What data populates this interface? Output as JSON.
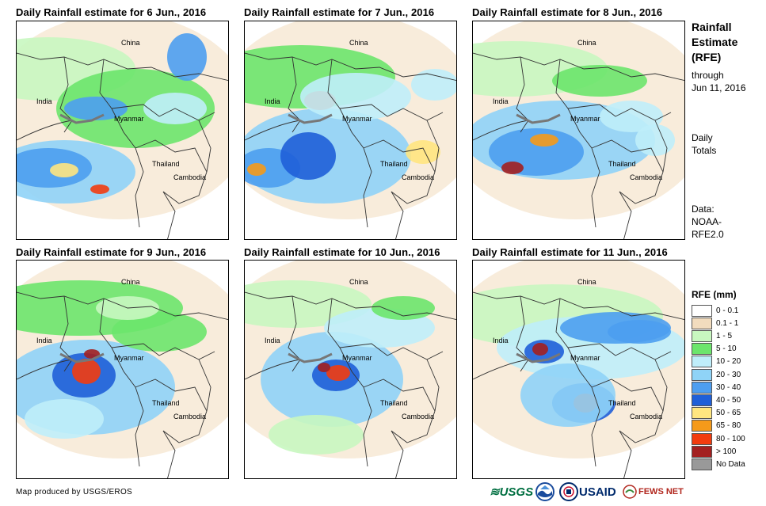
{
  "panels": [
    {
      "title": "Daily Rainfall estimate for 6 Jun., 2016"
    },
    {
      "title": "Daily Rainfall estimate for 7 Jun., 2016"
    },
    {
      "title": "Daily Rainfall estimate for 8 Jun., 2016"
    },
    {
      "title": "Daily Rainfall estimate for 9 Jun., 2016"
    },
    {
      "title": "Daily Rainfall estimate for 10 Jun., 2016"
    },
    {
      "title": "Daily Rainfall estimate for 11 Jun., 2016"
    }
  ],
  "map_labels": {
    "china": "China",
    "india": "India",
    "myanmar": "Myanmar",
    "thailand": "Thailand",
    "cambodia": "Cambodia"
  },
  "sidebar": {
    "title_line1": "Rainfall",
    "title_line2": "Estimate",
    "title_line3": "(RFE)",
    "through_line1": "through",
    "through_line2": "Jun 11, 2016",
    "totals_line1": "Daily",
    "totals_line2": "Totals",
    "data_line1": "Data:",
    "data_line2": "NOAA-",
    "data_line3": "RFE2.0"
  },
  "legend": {
    "title": "RFE (mm)",
    "items": [
      {
        "label": "0 - 0.1",
        "color": "#ffffff"
      },
      {
        "label": "0.1 - 1",
        "color": "#f2dcbe"
      },
      {
        "label": "1 - 5",
        "color": "#c8f7c0"
      },
      {
        "label": "5 - 10",
        "color": "#6ce56c"
      },
      {
        "label": "10 - 20",
        "color": "#bfeefa"
      },
      {
        "label": "20 - 30",
        "color": "#8fd3f7"
      },
      {
        "label": "30 - 40",
        "color": "#4d9ef0"
      },
      {
        "label": "40 - 50",
        "color": "#1f5fd8"
      },
      {
        "label": "50 - 65",
        "color": "#ffe680"
      },
      {
        "label": "65 - 80",
        "color": "#f59a1a"
      },
      {
        "label": "80 - 100",
        "color": "#f23c0f"
      },
      {
        "label": "> 100",
        "color": "#a31f1f"
      },
      {
        "label": "No Data",
        "color": "#999999"
      }
    ]
  },
  "footer": {
    "credit": "Map produced by USGS/EROS",
    "usgs": "≋USGS",
    "usaid": "USAID",
    "fews": "FEWS NET"
  }
}
